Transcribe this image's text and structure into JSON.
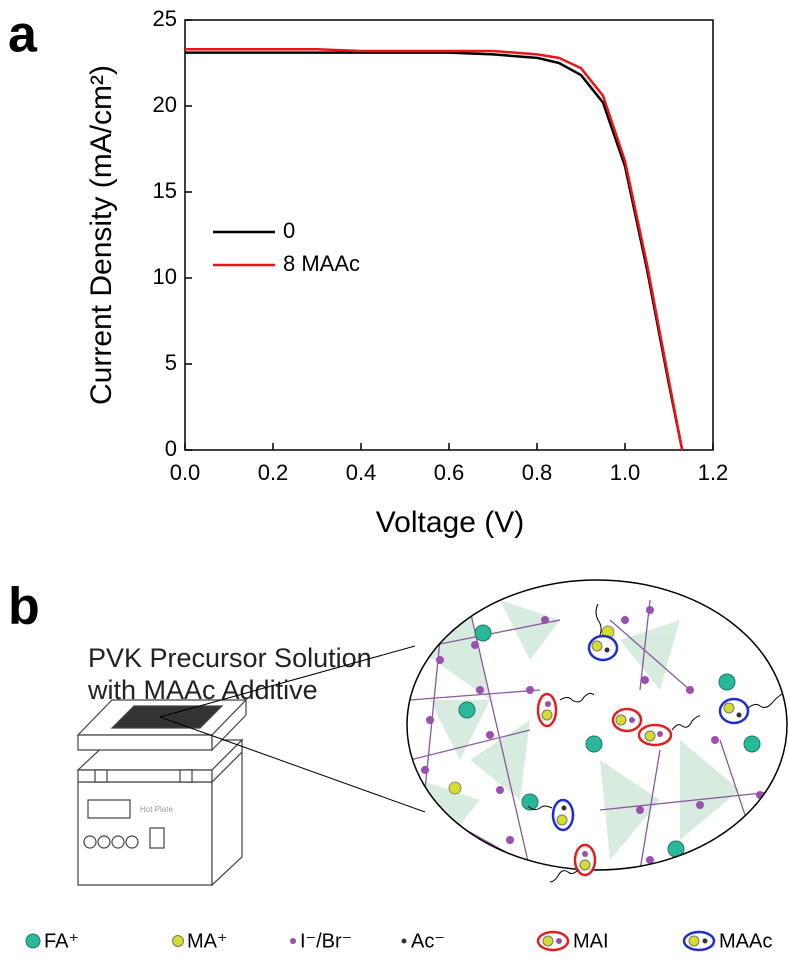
{
  "panel_labels": [
    "a",
    "b"
  ],
  "chart_data": {
    "type": "line",
    "x_label": "Voltage (V)",
    "y_label": "Current Density (mA/cm²)",
    "x": [
      0,
      0.1,
      0.2,
      0.3,
      0.4,
      0.5,
      0.6,
      0.7,
      0.8,
      0.85,
      0.9,
      0.95,
      1.0,
      1.05,
      1.1,
      1.13
    ],
    "series": [
      {
        "name": "0",
        "color": "#000000",
        "values": [
          23.1,
          23.1,
          23.1,
          23.1,
          23.1,
          23.1,
          23.1,
          23.0,
          22.8,
          22.5,
          21.8,
          20.2,
          16.5,
          10.5,
          3.8,
          0
        ]
      },
      {
        "name": "8 MAAc",
        "color": "#e8161b",
        "values": [
          23.3,
          23.3,
          23.3,
          23.3,
          23.2,
          23.2,
          23.2,
          23.2,
          23.0,
          22.8,
          22.2,
          20.6,
          16.8,
          10.8,
          4.0,
          0
        ]
      }
    ],
    "xlim": [
      0,
      1.2
    ],
    "ylim": [
      0,
      25
    ],
    "xticks": [
      {
        "value": 0,
        "label": "0.0"
      },
      0.2,
      0.4,
      0.6,
      0.8,
      {
        "value": 1,
        "label": "1.0"
      },
      1.2
    ],
    "yticks": [
      0,
      5,
      10,
      15,
      20,
      25
    ],
    "legend": "left"
  },
  "diagram": {
    "caption": [
      "PVK Precursor Solution",
      "with MAAc Additive"
    ],
    "device_label": "Hot Plate",
    "legend": [
      "FA⁺",
      "MA⁺",
      "I⁻/Br⁻",
      "Ac⁻",
      "MAI",
      "MAAc"
    ]
  }
}
